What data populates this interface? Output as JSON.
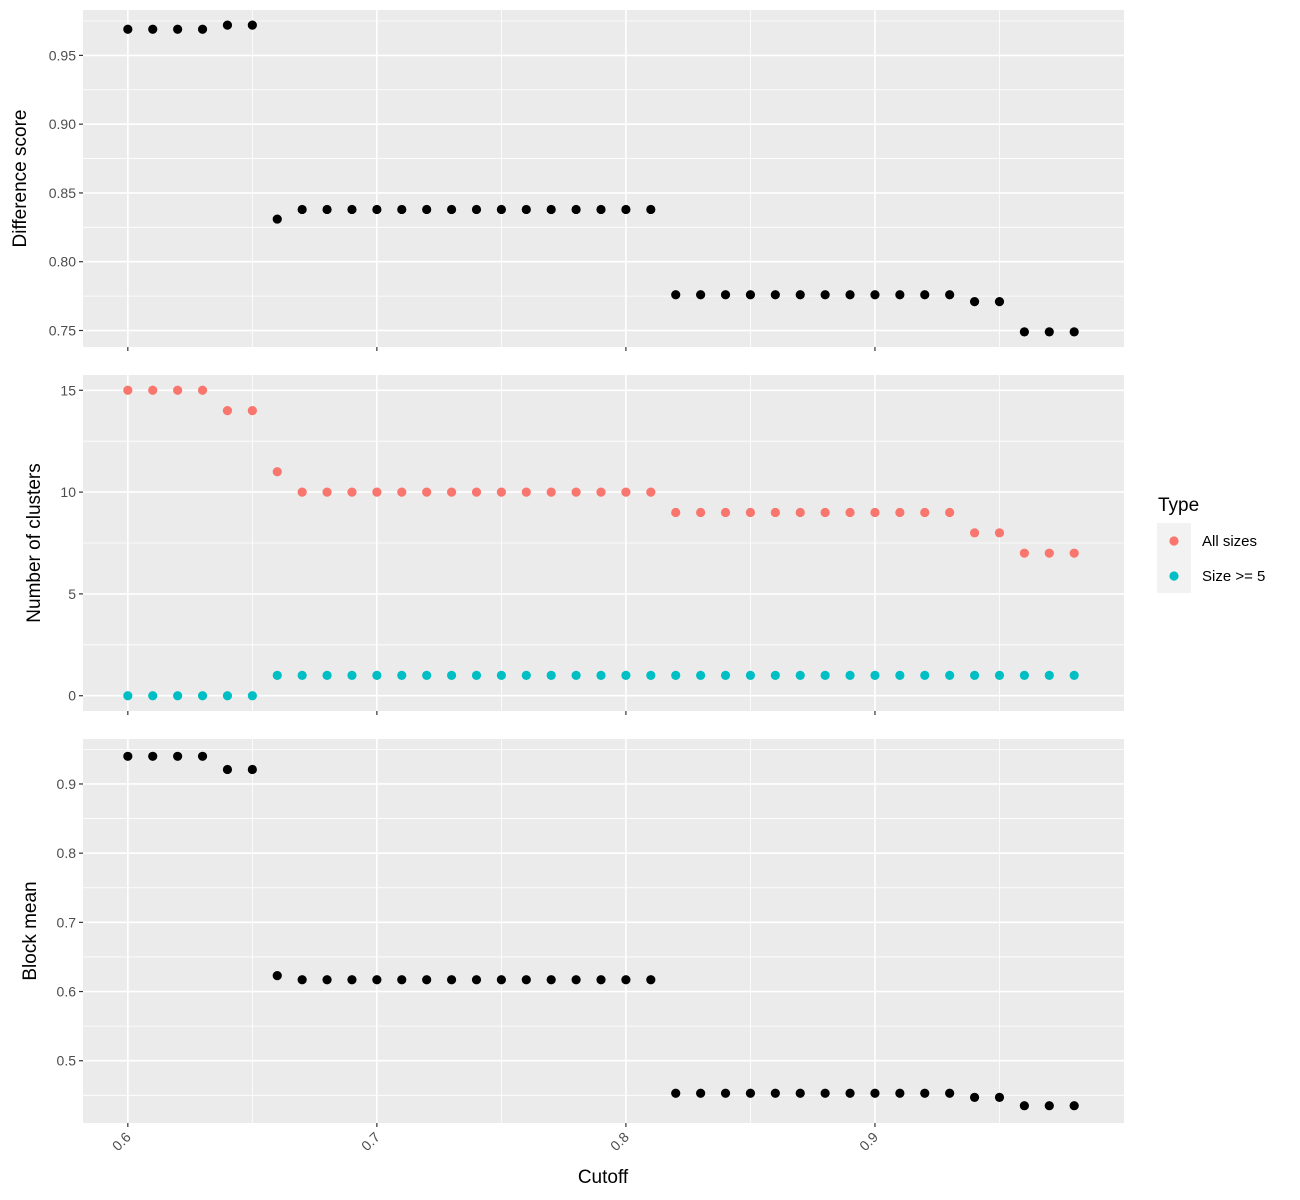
{
  "chart_data": {
    "type": "scatter",
    "xlabel": "Cutoff",
    "x": [
      0.6,
      0.61,
      0.62,
      0.63,
      0.64,
      0.65,
      0.66,
      0.67,
      0.68,
      0.69,
      0.7,
      0.71,
      0.72,
      0.73,
      0.74,
      0.75,
      0.76,
      0.77,
      0.78,
      0.79,
      0.8,
      0.81,
      0.82,
      0.83,
      0.84,
      0.85,
      0.86,
      0.87,
      0.88,
      0.89,
      0.9,
      0.91,
      0.92,
      0.93,
      0.94,
      0.95,
      0.96,
      0.97,
      0.98
    ],
    "xlim": [
      0.582,
      1.0
    ],
    "xticks": [
      0.6,
      0.7,
      0.8,
      0.9
    ],
    "xtick_labels": [
      "0.6",
      "0.7",
      "0.8",
      "0.9"
    ],
    "grid": true,
    "legend": {
      "title": "Type",
      "placement": "right",
      "entries": [
        {
          "label": "All sizes",
          "color": "#F8766D"
        },
        {
          "label": "Size >= 5",
          "color": "#00BFC4"
        }
      ]
    },
    "panels": [
      {
        "ylabel": "Difference score",
        "ylim": [
          0.738,
          0.983
        ],
        "yticks": [
          0.75,
          0.8,
          0.85,
          0.9,
          0.95
        ],
        "ytick_labels": [
          "0.75",
          "0.80",
          "0.85",
          "0.90",
          "0.95"
        ],
        "series": [
          {
            "color": "#000000",
            "values": [
              0.969,
              0.969,
              0.969,
              0.969,
              0.972,
              0.972,
              0.831,
              0.838,
              0.838,
              0.838,
              0.838,
              0.838,
              0.838,
              0.838,
              0.838,
              0.838,
              0.838,
              0.838,
              0.838,
              0.838,
              0.838,
              0.838,
              0.776,
              0.776,
              0.776,
              0.776,
              0.776,
              0.776,
              0.776,
              0.776,
              0.776,
              0.776,
              0.776,
              0.776,
              0.771,
              0.771,
              0.749,
              0.749,
              0.749
            ]
          }
        ]
      },
      {
        "ylabel": "Number of clusters",
        "ylim": [
          -0.75,
          15.75
        ],
        "yticks": [
          0,
          5,
          10,
          15
        ],
        "ytick_labels": [
          "0",
          "5",
          "10",
          "15"
        ],
        "series": [
          {
            "name": "All sizes",
            "color": "#F8766D",
            "values": [
              15,
              15,
              15,
              15,
              14,
              14,
              11,
              10,
              10,
              10,
              10,
              10,
              10,
              10,
              10,
              10,
              10,
              10,
              10,
              10,
              10,
              10,
              9,
              9,
              9,
              9,
              9,
              9,
              9,
              9,
              9,
              9,
              9,
              9,
              8,
              8,
              7,
              7,
              7
            ]
          },
          {
            "name": "Size >= 5",
            "color": "#00BFC4",
            "values": [
              0,
              0,
              0,
              0,
              0,
              0,
              1,
              1,
              1,
              1,
              1,
              1,
              1,
              1,
              1,
              1,
              1,
              1,
              1,
              1,
              1,
              1,
              1,
              1,
              1,
              1,
              1,
              1,
              1,
              1,
              1,
              1,
              1,
              1,
              1,
              1,
              1,
              1,
              1
            ]
          }
        ]
      },
      {
        "ylabel": "Block mean",
        "ylim": [
          0.41,
          0.965
        ],
        "yticks": [
          0.5,
          0.6,
          0.7,
          0.8,
          0.9
        ],
        "ytick_labels": [
          "0.5",
          "0.6",
          "0.7",
          "0.8",
          "0.9"
        ],
        "series": [
          {
            "color": "#000000",
            "values": [
              0.94,
              0.94,
              0.94,
              0.94,
              0.921,
              0.921,
              0.623,
              0.617,
              0.617,
              0.617,
              0.617,
              0.617,
              0.617,
              0.617,
              0.617,
              0.617,
              0.617,
              0.617,
              0.617,
              0.617,
              0.617,
              0.617,
              0.453,
              0.453,
              0.453,
              0.453,
              0.453,
              0.453,
              0.453,
              0.453,
              0.453,
              0.453,
              0.453,
              0.453,
              0.447,
              0.447,
              0.435,
              0.435,
              0.435
            ]
          }
        ]
      }
    ]
  }
}
